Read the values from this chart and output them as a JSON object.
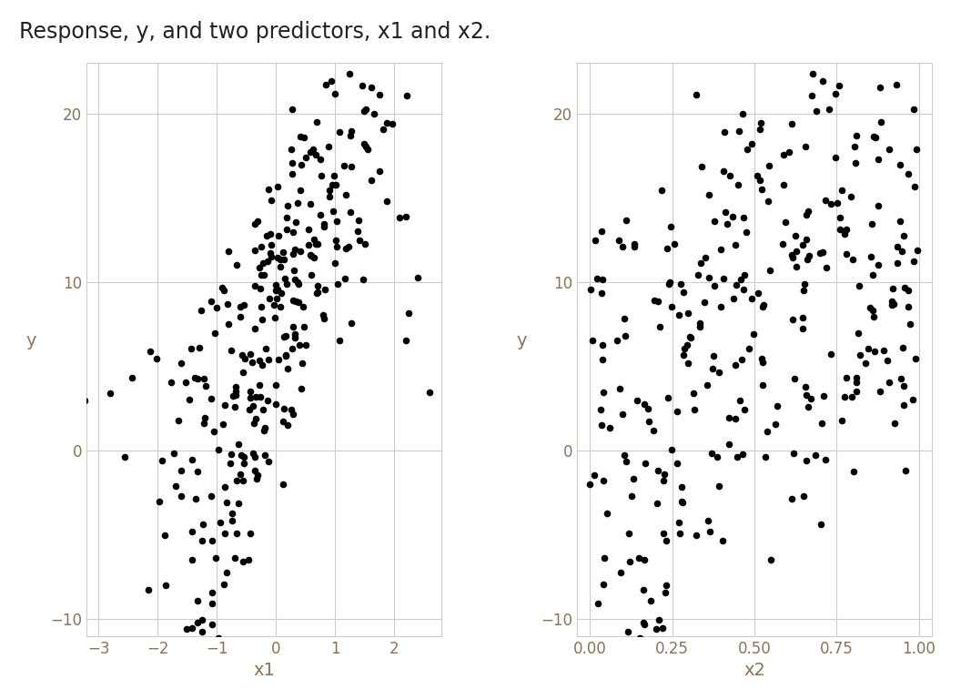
{
  "title": "Response, y, and two predictors, x1 and x2.",
  "title_fontsize": 17,
  "plot1_xlabel": "x1",
  "plot1_ylabel": "y",
  "plot2_xlabel": "x2",
  "plot2_ylabel": "y",
  "xlim1": [
    -3.2,
    2.8
  ],
  "xlim2": [
    -0.04,
    1.04
  ],
  "ylim": [
    -11,
    23
  ],
  "yticks": [
    -10,
    0,
    10,
    20
  ],
  "xticks1": [
    -3,
    -2,
    -1,
    0,
    1,
    2
  ],
  "xticks2": [
    0.0,
    0.25,
    0.5,
    0.75,
    1.0
  ],
  "dot_color": "#000000",
  "dot_size": 30,
  "bg_color": "#ffffff",
  "grid_color": "#cccccc",
  "tick_color": "#8B7355",
  "seed": 123,
  "n": 300
}
